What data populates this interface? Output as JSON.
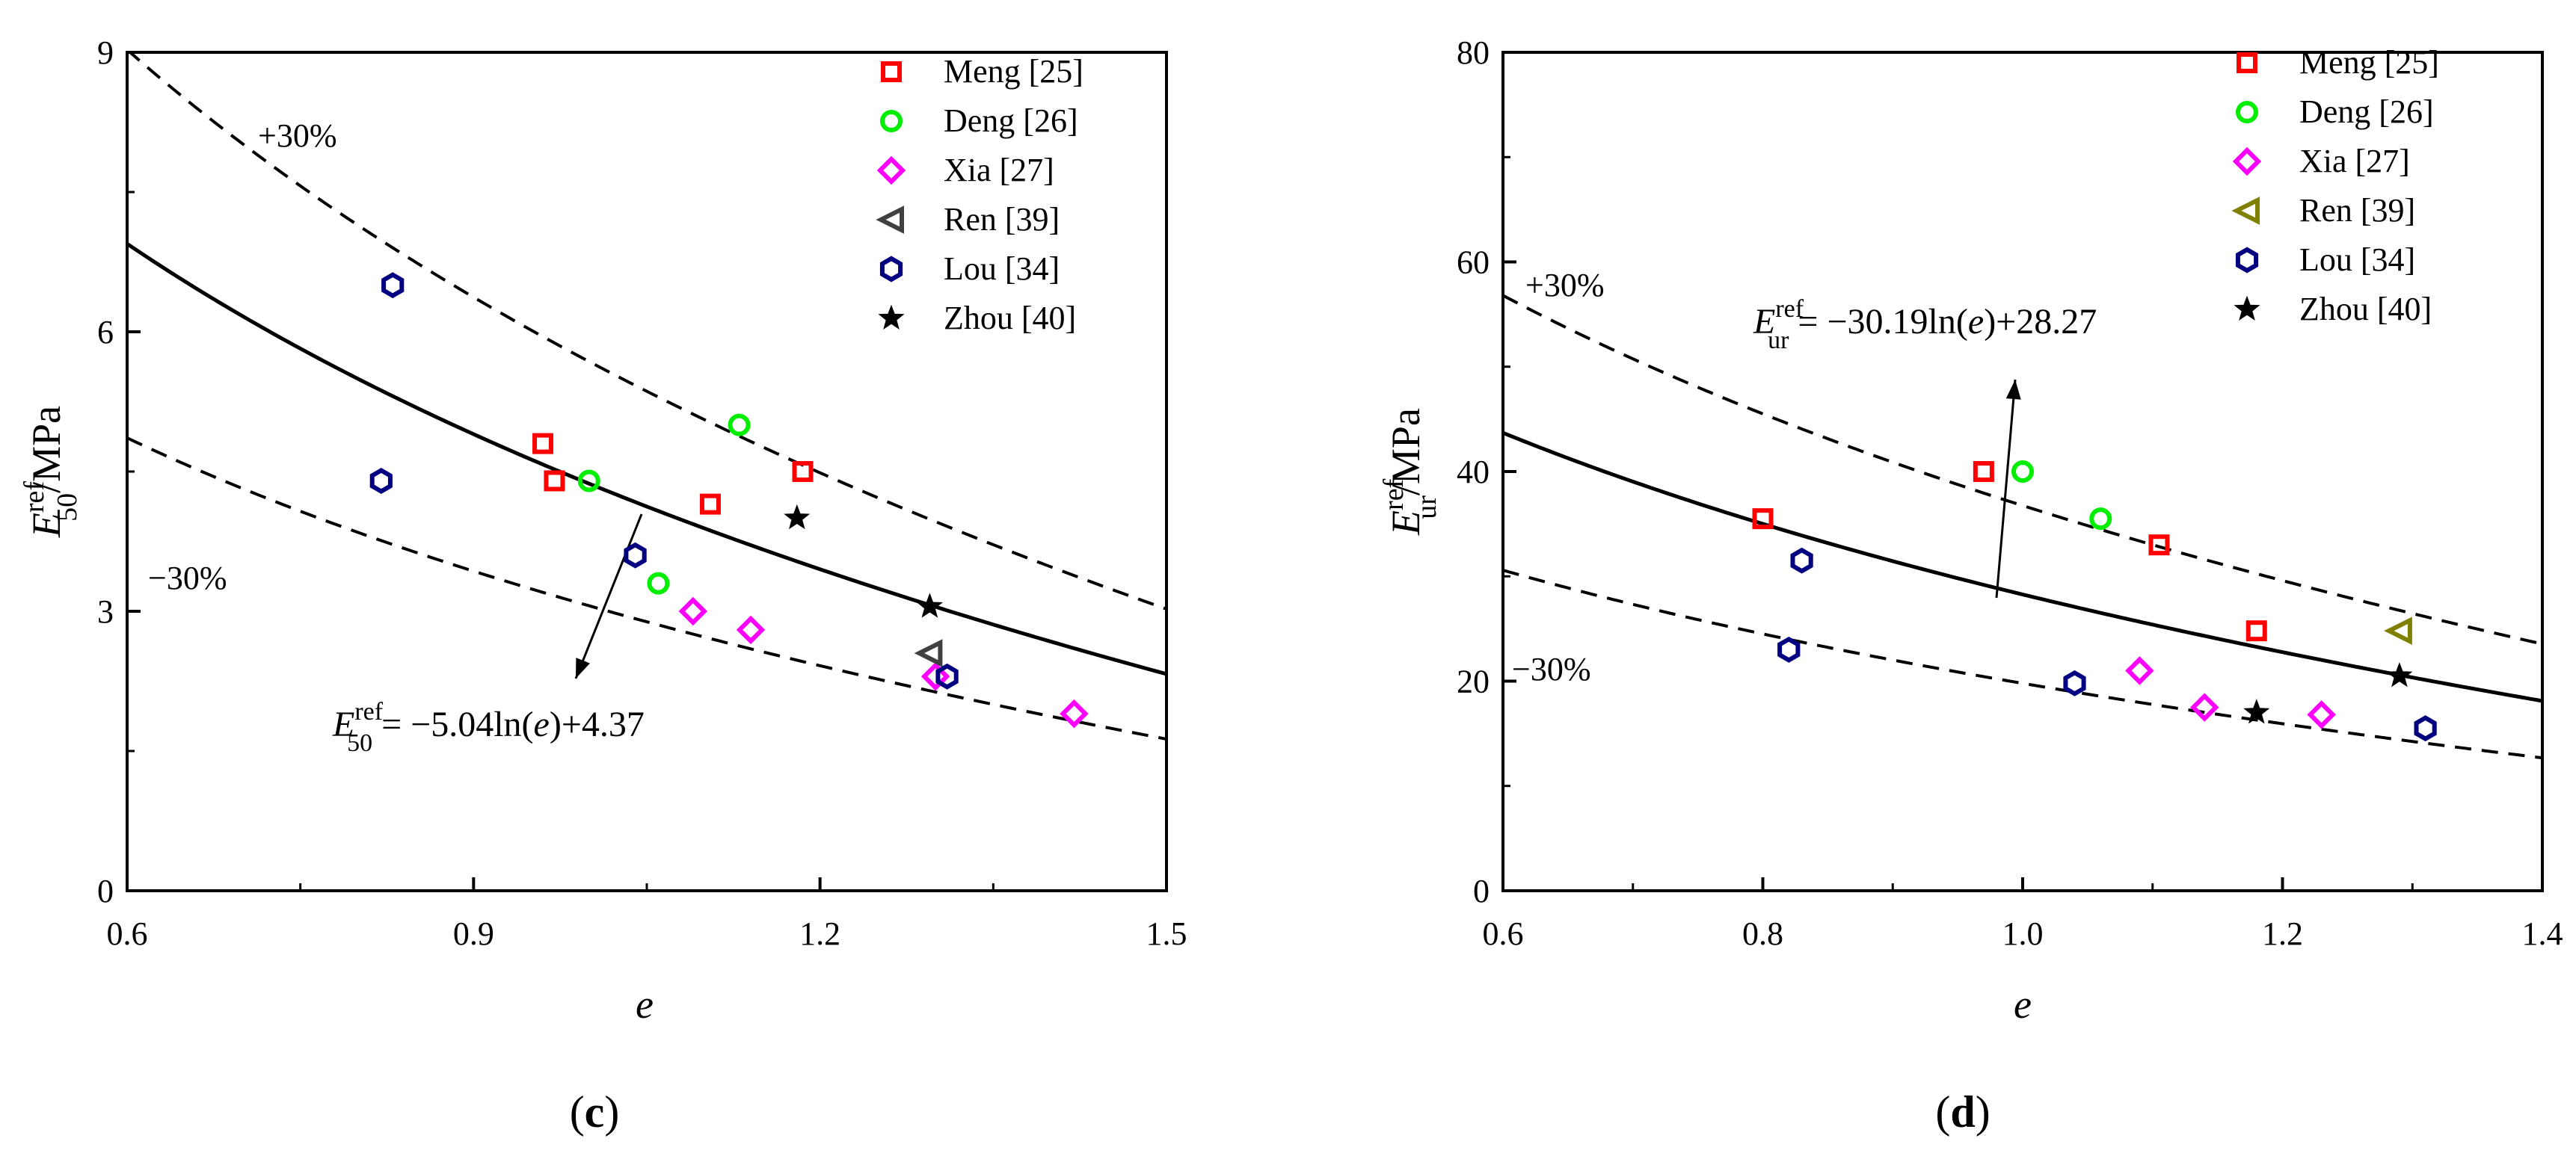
{
  "chart_data": [
    {
      "panel_label": "c",
      "type": "scatter",
      "xlabel": "e",
      "ylabel": {
        "main": "E",
        "sub": "50",
        "sup": "ref",
        "unit": "/MPa"
      },
      "xlim": [
        0.6,
        1.5
      ],
      "ylim": [
        0,
        9
      ],
      "x_ticks": [
        "0.6",
        "0.9",
        "1.2",
        "1.5"
      ],
      "y_ticks": [
        "0",
        "3",
        "6",
        "9"
      ],
      "fit": {
        "a": -5.04,
        "b": 4.37,
        "label_main": "E",
        "label_sub": "50",
        "label_sup": "ref",
        "label_rest": " = −5.04ln(",
        "label_var": "e",
        "label_tail": ")+4.37"
      },
      "band_labels": {
        "upper": "+30%",
        "lower": "−30%"
      },
      "legend_position": "top-right",
      "series": [
        {
          "name": "Meng [25]",
          "marker": "square",
          "color": "#ff0000",
          "points": [
            [
              0.96,
              4.8
            ],
            [
              0.97,
              4.4
            ],
            [
              1.105,
              4.15
            ],
            [
              1.185,
              4.5
            ]
          ]
        },
        {
          "name": "Deng [26]",
          "marker": "circle",
          "color": "#00ee00",
          "points": [
            [
              1.0,
              4.4
            ],
            [
              1.06,
              3.3
            ],
            [
              1.13,
              5.0
            ]
          ]
        },
        {
          "name": "Xia [27]",
          "marker": "diamond",
          "color": "#ff00ff",
          "points": [
            [
              1.09,
              3.0
            ],
            [
              1.14,
              2.8
            ],
            [
              1.3,
              2.3
            ],
            [
              1.42,
              1.9
            ]
          ]
        },
        {
          "name": "Ren [39]",
          "marker": "triangle-left",
          "color": "#404040",
          "points": [
            [
              1.295,
              2.55
            ]
          ]
        },
        {
          "name": "Lou [34]",
          "marker": "hexagon",
          "color": "#000080",
          "points": [
            [
              0.82,
              4.4
            ],
            [
              0.83,
              6.5
            ],
            [
              1.04,
              3.6
            ],
            [
              1.31,
              2.3
            ]
          ]
        },
        {
          "name": "Zhou [40]",
          "marker": "star",
          "color": "#000000",
          "points": [
            [
              1.18,
              4.0
            ],
            [
              1.295,
              3.05
            ]
          ]
        }
      ]
    },
    {
      "panel_label": "d",
      "type": "scatter",
      "xlabel": "e",
      "ylabel": {
        "main": "E",
        "sub": "ur",
        "sup": "ref",
        "unit": "/MPa"
      },
      "xlim": [
        0.6,
        1.4
      ],
      "ylim": [
        0,
        80
      ],
      "x_ticks": [
        "0.6",
        "0.8",
        "1.0",
        "1.2",
        "1.4"
      ],
      "y_ticks": [
        "0",
        "20",
        "40",
        "60",
        "80"
      ],
      "fit": {
        "a": -30.19,
        "b": 28.27,
        "label_main": "E",
        "label_sub": "ur",
        "label_sup": "ref",
        "label_rest": " = −30.19ln(",
        "label_var": "e",
        "label_tail": ")+28.27"
      },
      "band_labels": {
        "upper": "+30%",
        "lower": "−30%"
      },
      "legend_position": "top-right",
      "series": [
        {
          "name": "Meng [25]",
          "marker": "square",
          "color": "#ff0000",
          "points": [
            [
              0.8,
              35.5
            ],
            [
              0.97,
              40.0
            ],
            [
              1.105,
              33.0
            ],
            [
              1.18,
              24.8
            ]
          ]
        },
        {
          "name": "Deng [26]",
          "marker": "circle",
          "color": "#00ee00",
          "points": [
            [
              1.0,
              40.0
            ],
            [
              1.06,
              35.5
            ]
          ]
        },
        {
          "name": "Xia [27]",
          "marker": "diamond",
          "color": "#ff00ff",
          "points": [
            [
              1.09,
              21.0
            ],
            [
              1.14,
              17.5
            ],
            [
              1.23,
              16.8
            ]
          ]
        },
        {
          "name": "Ren [39]",
          "marker": "triangle-left",
          "color": "#808000",
          "points": [
            [
              1.29,
              24.8
            ]
          ]
        },
        {
          "name": "Lou [34]",
          "marker": "hexagon",
          "color": "#000080",
          "points": [
            [
              0.82,
              23.0
            ],
            [
              0.83,
              31.5
            ],
            [
              1.04,
              19.8
            ],
            [
              1.31,
              15.5
            ]
          ]
        },
        {
          "name": "Zhou [40]",
          "marker": "star",
          "color": "#000000",
          "points": [
            [
              1.18,
              17.0
            ],
            [
              1.29,
              20.5
            ]
          ]
        }
      ]
    }
  ]
}
